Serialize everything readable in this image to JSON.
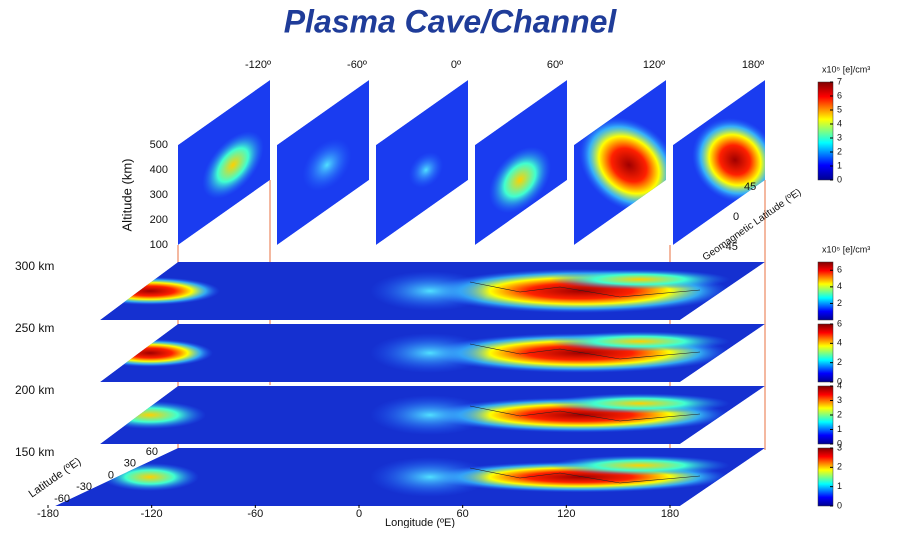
{
  "title": "Plasma Cave/Channel",
  "vertical_slices": {
    "longitude_labels": [
      "-120º",
      "-60º",
      "0º",
      "60º",
      "120º",
      "180º"
    ],
    "altitude_axis": {
      "label": "Altitude (km)",
      "range": [
        100,
        500
      ],
      "ticks": [
        100,
        200,
        300,
        400,
        500
      ]
    },
    "latitude_axis": {
      "label": "Geomagnetic Latitude (ºE)",
      "range": [
        -45,
        45
      ],
      "ticks": [
        -45,
        0,
        45
      ]
    },
    "colorbar": {
      "unit": "x10⁵ [e]/cm³",
      "range": [
        0,
        7
      ],
      "ticks": [
        0,
        1,
        2,
        3,
        4,
        5,
        6,
        7
      ]
    }
  },
  "layers": [
    {
      "label": "300 km",
      "colorbar": {
        "unit": "x10⁵ [e]/cm³",
        "range": [
          0,
          7
        ],
        "ticks": [
          2,
          4,
          6
        ]
      }
    },
    {
      "label": "250 km",
      "colorbar": {
        "range": [
          0,
          6
        ],
        "ticks": [
          0,
          2,
          4,
          6
        ]
      }
    },
    {
      "label": "200 km",
      "colorbar": {
        "range": [
          0,
          4
        ],
        "ticks": [
          0,
          1,
          2,
          3,
          4
        ]
      }
    },
    {
      "label": "150 km",
      "colorbar": {
        "range": [
          0,
          3
        ],
        "ticks": [
          0,
          1,
          2,
          3
        ]
      }
    }
  ],
  "map_axes": {
    "x_label": "Longitude (ºE)",
    "xlim": [
      -180,
      180
    ],
    "x_ticks": [
      -180,
      -120,
      -60,
      0,
      60,
      120,
      180
    ],
    "y_label": "Latitude (ºE)",
    "ylim": [
      -60,
      60
    ],
    "y_ticks": [
      -60,
      -30,
      0,
      30,
      60
    ]
  }
}
